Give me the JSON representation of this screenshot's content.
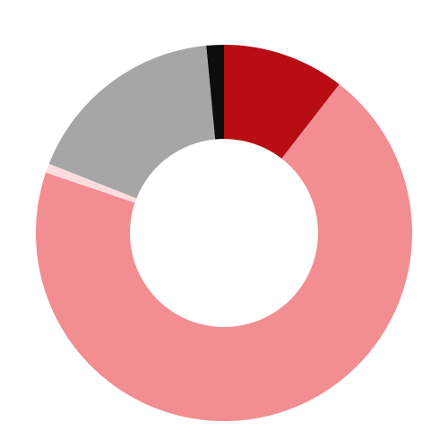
{
  "chart_data": {
    "type": "pie",
    "style": "donut",
    "direction": "clockwise",
    "start": "12 o'clock",
    "legend": "none",
    "slices": [
      {
        "value": 10.5,
        "color": "#b80d14"
      },
      {
        "value": 69.7,
        "color": "#f28d92"
      },
      {
        "value": 0.8,
        "color": "#fbdde0"
      },
      {
        "value": 17.5,
        "color": "#a6a6a6"
      },
      {
        "value": 1.5,
        "color": "#0d0d0d"
      }
    ]
  }
}
